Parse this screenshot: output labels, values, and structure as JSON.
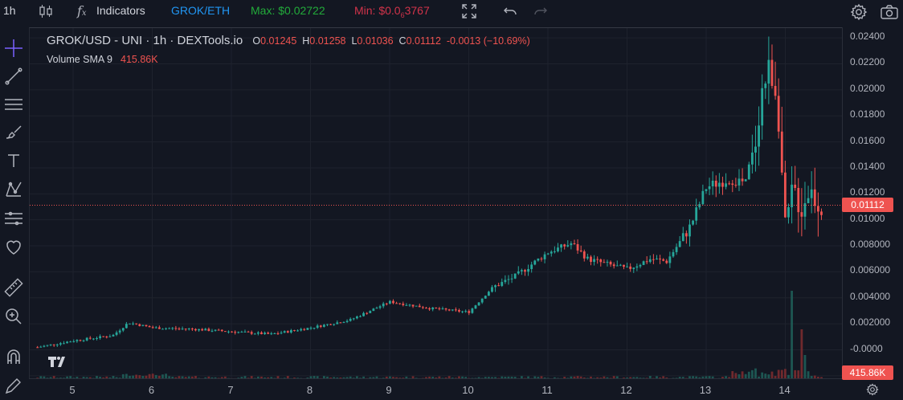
{
  "toolbar": {
    "interval": "1h",
    "indicators_label": "Indicators",
    "pair": "GROK/ETH",
    "max_label": "Max: $0.02722",
    "min_label_prefix": "Min: $0.0",
    "min_label_sub": "6",
    "min_label_suffix": "3767"
  },
  "legend": {
    "symbol": "GROK/USD - UNI · 1h · DEXTools.io",
    "open_label": "O",
    "open": "0.01245",
    "high_label": "H",
    "high": "0.01258",
    "low_label": "L",
    "low": "0.01036",
    "close_label": "C",
    "close": "0.01112",
    "change": "-0.0013 (−10.69%)",
    "volume_label": "Volume SMA 9",
    "volume_value": "415.86K"
  },
  "price_axis": {
    "ticks": [
      "0.02400",
      "0.02200",
      "0.02000",
      "0.01800",
      "0.01600",
      "0.01400",
      "0.01200",
      "0.01000",
      "0.008000",
      "0.006000",
      "0.004000",
      "0.002000",
      "-0.0000",
      "-0.0020"
    ],
    "last_price": "0.01112",
    "volume_badge": "415.86K"
  },
  "time_axis": {
    "ticks": [
      "5",
      "6",
      "7",
      "8",
      "9",
      "10",
      "11",
      "12",
      "13",
      "14"
    ]
  },
  "colors": {
    "background": "#131722",
    "up": "#26a69a",
    "down": "#ef5350",
    "max_green": "#22ab3a",
    "min_red": "#d1334a",
    "link_blue": "#2196f3"
  },
  "sidebar": {
    "tools": [
      "crosshair-icon",
      "trend-line-icon",
      "horizontal-lines-icon",
      "brush-icon",
      "text-icon",
      "pattern-icon",
      "forecast-icon",
      "favorites-icon",
      "ruler-icon",
      "zoom-icon",
      "magnet-icon",
      "pencil-lock-icon"
    ]
  },
  "chart_data": {
    "type": "candlestick",
    "title": "GROK/USD - UNI · 1h · DEXTools.io",
    "x_label": "",
    "y_label": "",
    "ylim": [
      -0.0025,
      0.0245
    ],
    "x_ticks": [
      "5",
      "6",
      "7",
      "8",
      "9",
      "10",
      "11",
      "12",
      "13",
      "14"
    ],
    "last_price": 0.01112,
    "series": [
      {
        "name": "close",
        "days": [
          4.55,
          5.0,
          5.5,
          5.7,
          6.0,
          6.5,
          7.0,
          7.5,
          8.0,
          8.5,
          9.0,
          9.5,
          10.0,
          10.3,
          10.6,
          11.0,
          11.3,
          11.5,
          11.8,
          12.0,
          12.3,
          12.5,
          12.8,
          13.0,
          13.3,
          13.5,
          13.6,
          13.7,
          13.8,
          13.9,
          14.0,
          14.1,
          14.2,
          14.3,
          14.45
        ],
        "values": [
          0.0002,
          0.0007,
          0.0011,
          0.0021,
          0.0017,
          0.0016,
          0.0014,
          0.0012,
          0.0017,
          0.0023,
          0.0037,
          0.0032,
          0.0029,
          0.0048,
          0.0057,
          0.0075,
          0.0082,
          0.007,
          0.0065,
          0.0062,
          0.007,
          0.0068,
          0.0095,
          0.0125,
          0.0132,
          0.0128,
          0.015,
          0.0198,
          0.0218,
          0.0195,
          0.009,
          0.0125,
          0.0108,
          0.0124,
          0.01112
        ]
      }
    ],
    "volume_sma_9": 415860
  }
}
